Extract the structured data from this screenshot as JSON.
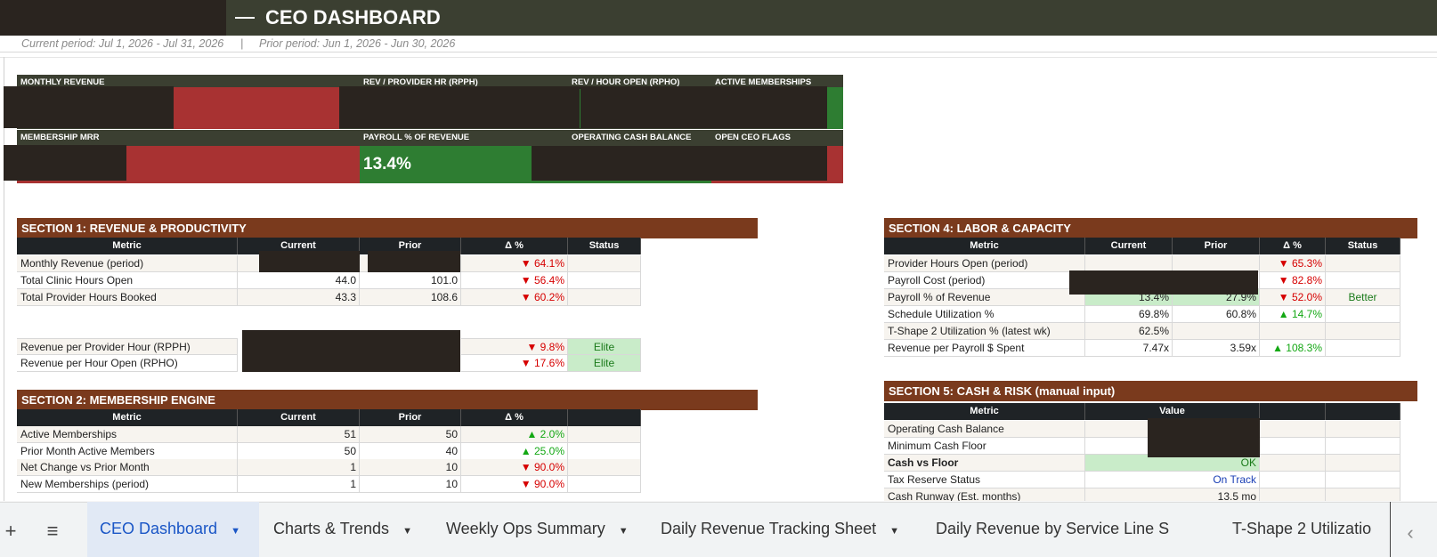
{
  "header": {
    "title": "CEO DASHBOARD",
    "current_period": "Current period:  Jul 1, 2026  -  Jul 31, 2026",
    "separator": "|",
    "prior_period": "Prior period:  Jun 1, 2026  -  Jun 30, 2026"
  },
  "kpis": {
    "monthly_revenue": "MONTHLY REVENUE",
    "rev_provider_hr": "REV / PROVIDER HR (RPPH)",
    "rev_hour_open": "REV / HOUR OPEN (RPHO)",
    "active_memberships": "ACTIVE MEMBERSHIPS",
    "membership_mrr": "MEMBERSHIP MRR",
    "payroll_pct": "PAYROLL % OF REVENUE",
    "payroll_pct_value": "13.4%",
    "operating_cash": "OPERATING CASH BALANCE",
    "open_flags": "OPEN CEO FLAGS"
  },
  "section1": {
    "title": "SECTION 1:  REVENUE & PRODUCTIVITY",
    "headers": [
      "Metric",
      "Current",
      "Prior",
      "Δ %",
      "Status"
    ],
    "rows": [
      {
        "metric": "Monthly Revenue (period)",
        "current": "",
        "prior": "",
        "delta": "▼ 64.1%",
        "status": ""
      },
      {
        "metric": "Total Clinic Hours Open",
        "current": "44.0",
        "prior": "101.0",
        "delta": "▼ 56.4%",
        "status": ""
      },
      {
        "metric": "Total Provider Hours Booked",
        "current": "43.3",
        "prior": "108.6",
        "delta": "▼ 60.2%",
        "status": ""
      }
    ],
    "rows2": [
      {
        "metric": "Revenue per Provider Hour (RPPH)",
        "delta": "▼ 9.8%",
        "status": "Elite"
      },
      {
        "metric": "Revenue per Hour Open (RPHO)",
        "delta": "▼ 17.6%",
        "status": "Elite"
      }
    ]
  },
  "section2": {
    "title": "SECTION 2:  MEMBERSHIP ENGINE",
    "headers": [
      "Metric",
      "Current",
      "Prior",
      "Δ %",
      ""
    ],
    "rows": [
      {
        "metric": "Active Memberships",
        "current": "51",
        "prior": "50",
        "delta": "▲ 2.0%"
      },
      {
        "metric": "Prior Month Active Members",
        "current": "50",
        "prior": "40",
        "delta": "▲ 25.0%"
      },
      {
        "metric": "Net Change vs Prior Month",
        "current": "1",
        "prior": "10",
        "delta": "▼ 90.0%"
      },
      {
        "metric": "New Memberships (period)",
        "current": "1",
        "prior": "10",
        "delta": "▼ 90.0%"
      }
    ]
  },
  "section4": {
    "title": "SECTION 4:  LABOR & CAPACITY",
    "headers": [
      "Metric",
      "Current",
      "Prior",
      "Δ %",
      "Status"
    ],
    "rows": [
      {
        "metric": "Provider Hours Open (period)",
        "current": "",
        "prior": "",
        "delta": "▼ 65.3%",
        "status": ""
      },
      {
        "metric": "Payroll Cost (period)",
        "current": "",
        "prior": "",
        "delta": "▼ 82.8%",
        "status": ""
      },
      {
        "metric": "Payroll % of Revenue",
        "current": "13.4%",
        "prior": "27.9%",
        "delta": "▼ 52.0%",
        "status": "Better"
      },
      {
        "metric": "Schedule Utilization %",
        "current": "69.8%",
        "prior": "60.8%",
        "delta": "▲ 14.7%",
        "status": ""
      },
      {
        "metric": "T-Shape 2 Utilization % (latest wk)",
        "current": "62.5%",
        "prior": "",
        "delta": "",
        "status": ""
      },
      {
        "metric": "Revenue per Payroll $ Spent",
        "current": "7.47x",
        "prior": "3.59x",
        "delta": "▲ 108.3%",
        "status": ""
      }
    ]
  },
  "section5": {
    "title": "SECTION 5:  CASH & RISK  (manual input)",
    "headers": [
      "Metric",
      "Value",
      "",
      ""
    ],
    "rows": [
      {
        "metric": "Operating Cash Balance",
        "value": ""
      },
      {
        "metric": "Minimum Cash Floor",
        "value": ""
      },
      {
        "metric": "Cash vs Floor",
        "value": "OK"
      },
      {
        "metric": "Tax Reserve Status",
        "value": "On Track"
      },
      {
        "metric": "Cash Runway (Est. months)",
        "value": "13.5 mo"
      }
    ]
  },
  "tabs": {
    "add": "+",
    "menu": "≡",
    "items": [
      "CEO Dashboard",
      "Charts & Trends",
      "Weekly Ops Summary",
      "Daily Revenue Tracking Sheet",
      "Daily Revenue by Service Line S",
      "T-Shape 2 Utilizatio"
    ],
    "scroll_left": "‹"
  },
  "colors": {
    "header_bg": "#3b3f31",
    "section_bg": "#7a3a1d",
    "table_head_bg": "#1f2326",
    "kpi_red": "#a83232",
    "kpi_green": "#2e7d32",
    "active_tab": "#1a56c6"
  }
}
